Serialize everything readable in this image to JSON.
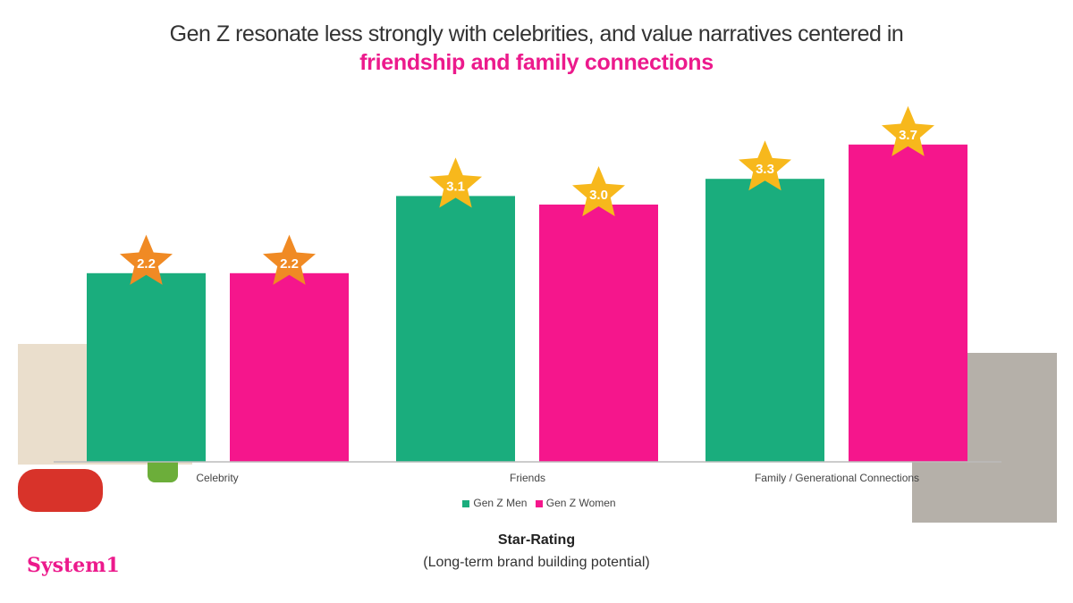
{
  "header": {
    "title": "Gen Z resonate less strongly with celebrities, and value narratives centered in",
    "highlight": "friendship and family connections"
  },
  "chart_data": {
    "type": "bar",
    "categories": [
      "Celebrity",
      "Friends",
      "Family / Generational Connections"
    ],
    "series": [
      {
        "name": "Gen Z Men",
        "values": [
          2.2,
          3.1,
          3.3
        ],
        "color": "#1aad7d"
      },
      {
        "name": "Gen Z Women",
        "values": [
          2.2,
          3.0,
          3.7
        ],
        "color": "#f5168c"
      }
    ],
    "data_labels": [
      [
        "2.2",
        "3.1",
        "3.3"
      ],
      [
        "2.2",
        "3.0",
        "3.7"
      ]
    ],
    "star_colors": {
      "low": "#f08a24",
      "high": "#f7b81c"
    },
    "ylim": [
      0,
      4
    ],
    "grid": false,
    "legend_position": "bottom",
    "xlabel": "Star-Rating",
    "xlabel_sub": "(Long-term brand building potential)"
  },
  "brand": {
    "logo": "System1"
  }
}
